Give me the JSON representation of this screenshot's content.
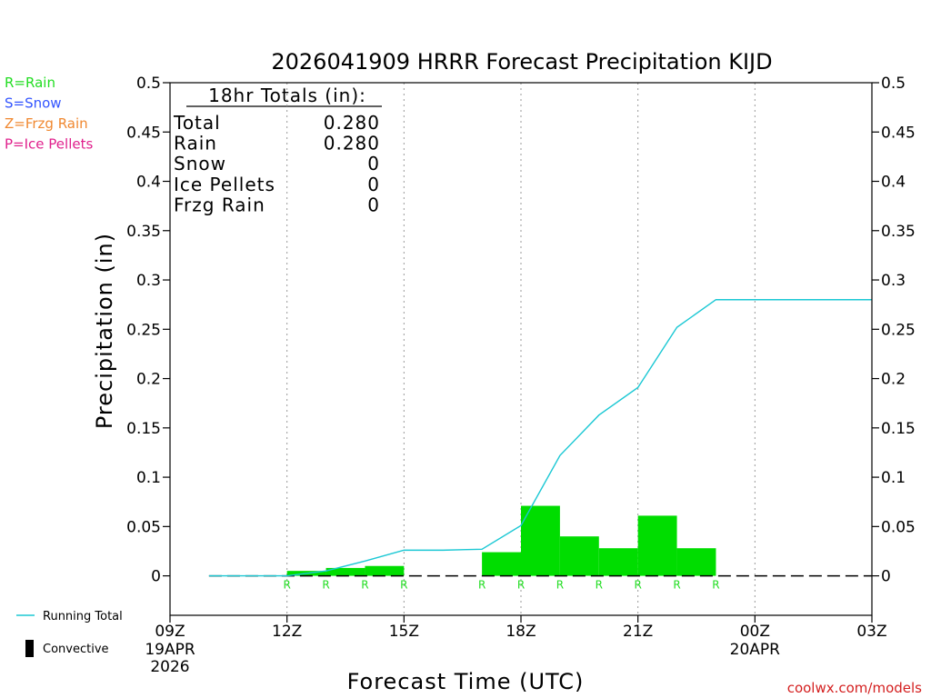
{
  "chart_data": {
    "type": "bar",
    "title": "2026041909 HRRR Forecast Precipitation KIJD",
    "xlabel": "Forecast Time (UTC)",
    "ylabel": "Precipitation (in)",
    "ylim": [
      -0.04,
      0.5
    ],
    "xlim": [
      0,
      18
    ],
    "y_ticks": [
      {
        "value": 0,
        "label": "0"
      },
      {
        "value": 0.05,
        "label": "0.05"
      },
      {
        "value": 0.1,
        "label": "0.1"
      },
      {
        "value": 0.15,
        "label": "0.15"
      },
      {
        "value": 0.2,
        "label": "0.2"
      },
      {
        "value": 0.25,
        "label": "0.25"
      },
      {
        "value": 0.3,
        "label": "0.3"
      },
      {
        "value": 0.35,
        "label": "0.35"
      },
      {
        "value": 0.4,
        "label": "0.4"
      },
      {
        "value": 0.45,
        "label": "0.45"
      },
      {
        "value": 0.5,
        "label": "0.5"
      }
    ],
    "x_ticks": [
      {
        "hour": 0,
        "label": "09Z",
        "date": "19APR",
        "year": "2026"
      },
      {
        "hour": 3,
        "label": "12Z"
      },
      {
        "hour": 6,
        "label": "15Z"
      },
      {
        "hour": 9,
        "label": "18Z"
      },
      {
        "hour": 12,
        "label": "21Z"
      },
      {
        "hour": 15,
        "label": "00Z",
        "date": "20APR"
      },
      {
        "hour": 18,
        "label": "03Z"
      }
    ],
    "grid": "vertical dotted at 3-hour ticks",
    "hourly_precip": [
      {
        "hour": 3.5,
        "value": 0.005,
        "ptype": "R"
      },
      {
        "hour": 4.5,
        "value": 0.008,
        "ptype": "R"
      },
      {
        "hour": 5.5,
        "value": 0.01,
        "ptype": "R"
      },
      {
        "hour": 8.5,
        "value": 0.024,
        "ptype": "R"
      },
      {
        "hour": 9.5,
        "value": 0.071,
        "ptype": "R"
      },
      {
        "hour": 10.5,
        "value": 0.04,
        "ptype": "R"
      },
      {
        "hour": 11.5,
        "value": 0.028,
        "ptype": "R"
      },
      {
        "hour": 12.5,
        "value": 0.061,
        "ptype": "R"
      },
      {
        "hour": 13.5,
        "value": 0.028,
        "ptype": "R"
      }
    ],
    "ptype_markers": [
      {
        "hour": 3,
        "label": "R"
      },
      {
        "hour": 4,
        "label": "R"
      },
      {
        "hour": 5,
        "label": "R"
      },
      {
        "hour": 6,
        "label": "R"
      },
      {
        "hour": 8,
        "label": "R"
      },
      {
        "hour": 9,
        "label": "R"
      },
      {
        "hour": 10,
        "label": "R"
      },
      {
        "hour": 11,
        "label": "R"
      },
      {
        "hour": 12,
        "label": "R"
      },
      {
        "hour": 13,
        "label": "R"
      },
      {
        "hour": 14,
        "label": "R"
      }
    ],
    "running_total": {
      "name": "Running Total",
      "x": [
        1,
        2,
        3,
        4,
        5,
        6,
        7,
        8,
        9,
        10,
        11,
        12,
        13,
        14,
        15,
        16,
        17,
        18
      ],
      "y": [
        0,
        0,
        0,
        0.005,
        0.015,
        0.026,
        0.026,
        0.027,
        0.051,
        0.122,
        0.163,
        0.191,
        0.252,
        0.28,
        0.28,
        0.28,
        0.28,
        0.28
      ]
    },
    "totals_box": {
      "heading": "18hr Totals (in):",
      "rows": [
        {
          "label": "Total",
          "value": "0.280"
        },
        {
          "label": "Rain",
          "value": "0.280"
        },
        {
          "label": "Snow",
          "value": "0"
        },
        {
          "label": "Ice Pellets",
          "value": "0"
        },
        {
          "label": "Frzg Rain",
          "value": "0"
        }
      ]
    },
    "ptype_legend": [
      {
        "label": "R=Rain",
        "color": "#22dd22"
      },
      {
        "label": "S=Snow",
        "color": "#3355ff"
      },
      {
        "label": "Z=Frzg Rain",
        "color": "#f08830"
      },
      {
        "label": "P=Ice Pellets",
        "color": "#e0208c"
      }
    ],
    "series_legend": [
      {
        "label": "Running Total",
        "color": "#1bc8d4"
      },
      {
        "label": "Convective",
        "color": "#000000"
      }
    ],
    "credit": "coolwx.com/models",
    "colors": {
      "rain_bar": "#00dd00",
      "running_total": "#1bc8d4",
      "credit": "#d42020",
      "marker": "#22dd22"
    }
  }
}
